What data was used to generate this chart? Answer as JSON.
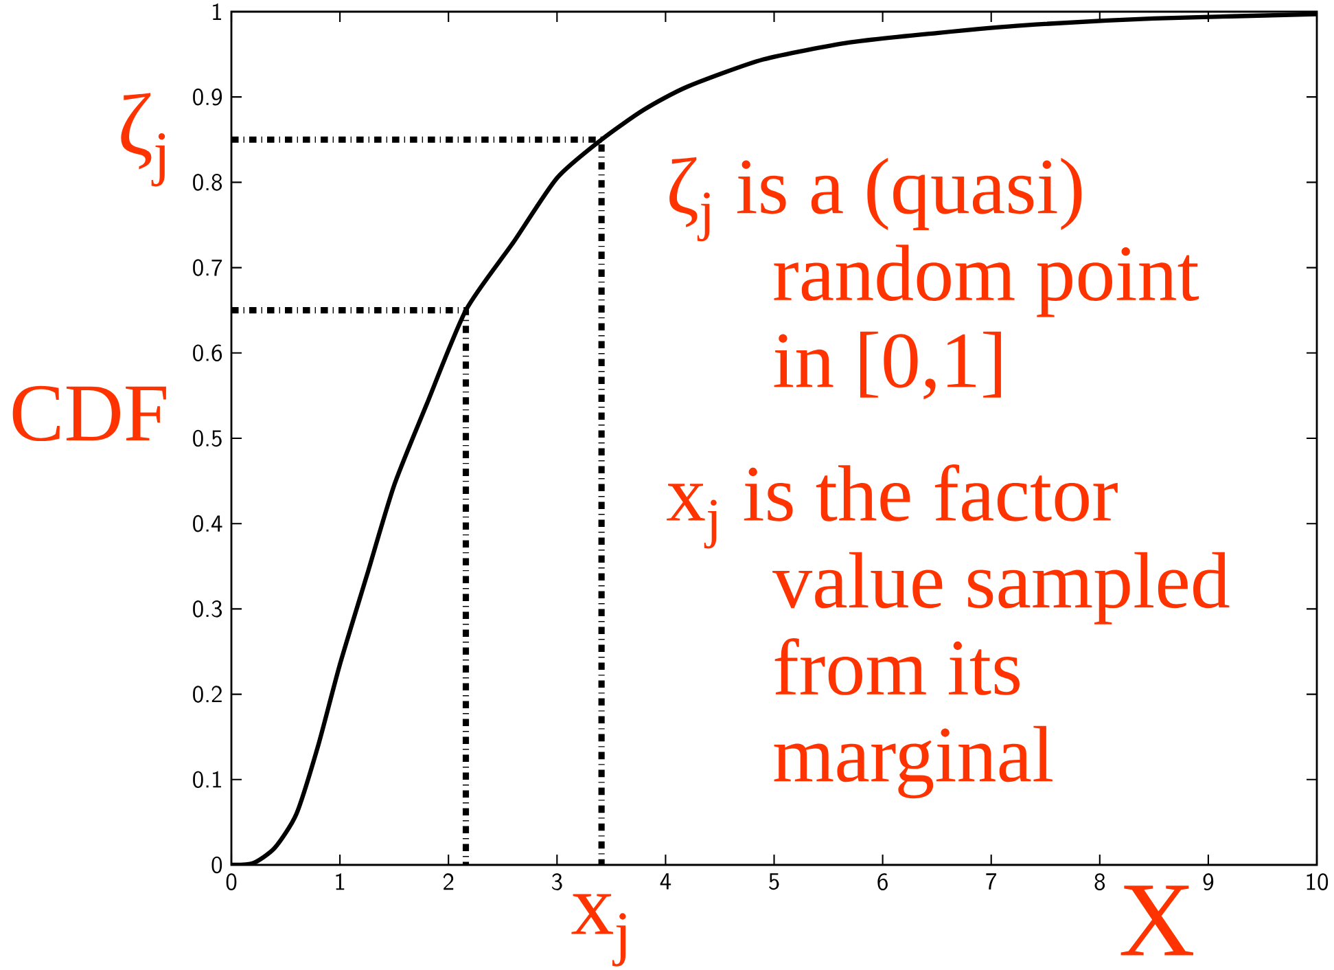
{
  "chart_data": {
    "type": "line",
    "xlabel": "X",
    "ylabel": "CDF",
    "xlim": [
      0,
      10
    ],
    "ylim": [
      0,
      1
    ],
    "xticks": [
      0,
      1,
      2,
      3,
      4,
      5,
      6,
      7,
      8,
      9,
      10
    ],
    "yticks": [
      0,
      0.1,
      0.2,
      0.3,
      0.4,
      0.5,
      0.6,
      0.7,
      0.8,
      0.9,
      1
    ],
    "grid": false,
    "marker": "none",
    "series": [
      {
        "color": "#000000",
        "line_style": "solid",
        "x": [
          0,
          0.2,
          0.4,
          0.6,
          0.8,
          1.0,
          1.25,
          1.5,
          1.8,
          2.16,
          2.6,
          3.0,
          3.41,
          3.8,
          4.2,
          4.9,
          5.7,
          6.5,
          7.3,
          8.5,
          10
        ],
        "values": [
          0,
          0.002,
          0.02,
          0.06,
          0.14,
          0.235,
          0.34,
          0.445,
          0.54,
          0.65,
          0.73,
          0.805,
          0.85,
          0.885,
          0.912,
          0.944,
          0.964,
          0.975,
          0.984,
          0.992,
          0.997
        ]
      },
      {
        "color": "#000000",
        "line_style": "dashed",
        "x": [
          0,
          2.16,
          2.16
        ],
        "values": [
          0.65,
          0.65,
          0
        ]
      },
      {
        "color": "#000000",
        "line_style": "dashed",
        "x": [
          0,
          3.41,
          3.41
        ],
        "values": [
          0.85,
          0.85,
          0
        ]
      }
    ],
    "annotations": [
      {
        "text": "ζ$_{j}$",
        "x": 0,
        "y": 0.85
      },
      {
        "text": "x$_{j}$",
        "x": 3.41,
        "y": 0
      },
      "ζ$_{j}$ is a (quasi) random point in [0,1]",
      "x$_{j}$ is the factor value sampled from its marginal"
    ]
  }
}
